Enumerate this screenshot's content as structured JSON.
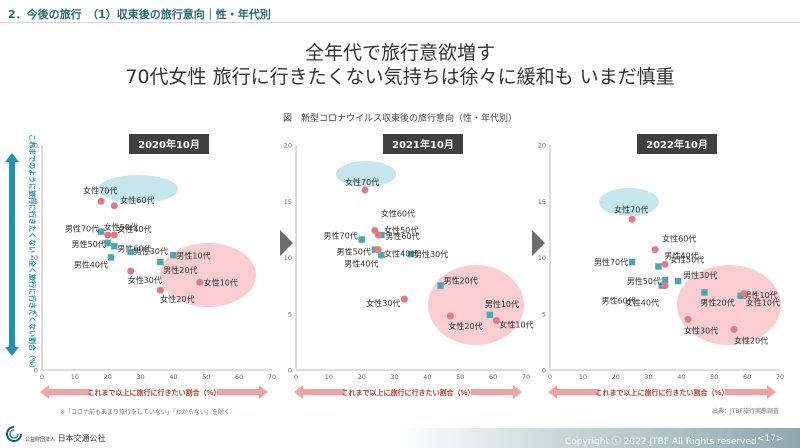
{
  "header": {
    "section": "2．今後の旅行　（1）収束後の旅行意向｜性・年代別"
  },
  "headline": {
    "line1": "全年代で旅行意欲増す",
    "line2": "70代女性 旅行に行きたくない気持ちは徐々に緩和も いまだ慎重"
  },
  "caption": "図　新型コロナウイルス収束後の旅行意向（性・年代別）",
  "footnote": "※「コロナ前もあまり旅行をしていない」「わからない」を除く",
  "source": "出典：JTBF旅行実態調査",
  "footer": {
    "copyright": "Copyright ⓒ 2022 JTBF All Rights reserved.",
    "page": "<17>",
    "org": "日本交通公社",
    "org_small": "公益財団法人"
  },
  "colors": {
    "male": "#4aa6b5",
    "female": "#e07b80",
    "arrow": "#f2a2a4",
    "vertical_arrow": "#1f93ad",
    "title_bg": "#404040"
  },
  "chart_data": [
    {
      "type": "scatter",
      "title": "2020年10月",
      "xlabel": "これまで以上に旅行に行きたい割合（%）",
      "ylabel": "これまでのように旅行に行きたくない・全く旅行に行きたくない割合（%）",
      "xlim": [
        0,
        70
      ],
      "ylim": [
        0,
        20
      ],
      "xticks": [
        0,
        10,
        20,
        30,
        40,
        50,
        60,
        70
      ],
      "yticks": [
        0,
        5,
        10,
        15,
        20
      ],
      "grid": false,
      "series": [
        {
          "name": "男性",
          "points": [
            {
              "label": "男性70代",
              "x": 18,
              "y": 12.3
            },
            {
              "label": "男性50代",
              "x": 20,
              "y": 11.3
            },
            {
              "label": "男性40代",
              "x": 21,
              "y": 10.0
            },
            {
              "label": "男性60代",
              "x": 22,
              "y": 11.0
            },
            {
              "label": "男性30代",
              "x": 27,
              "y": 10.5
            },
            {
              "label": "男性10代",
              "x": 40,
              "y": 10.2
            },
            {
              "label": "男性20代",
              "x": 36,
              "y": 9.6
            }
          ]
        },
        {
          "name": "女性",
          "points": [
            {
              "label": "女性70代",
              "x": 18,
              "y": 15.0
            },
            {
              "label": "女性60代",
              "x": 22,
              "y": 14.6
            },
            {
              "label": "女性50代",
              "x": 20,
              "y": 12.0
            },
            {
              "label": "女性40代",
              "x": 22,
              "y": 12.0
            },
            {
              "label": "女性30代",
              "x": 27,
              "y": 8.8
            },
            {
              "label": "女性20代",
              "x": 36,
              "y": 7.1
            },
            {
              "label": "女性10代",
              "x": 48,
              "y": 7.8
            }
          ]
        }
      ]
    },
    {
      "type": "scatter",
      "title": "2021年10月",
      "xlabel": "これまで以上に旅行に行きたい割合（%）",
      "xlim": [
        0,
        70
      ],
      "ylim": [
        0,
        20
      ],
      "xticks": [
        0,
        10,
        20,
        30,
        40,
        50,
        60,
        70
      ],
      "yticks": [
        0,
        5,
        10,
        15,
        20
      ],
      "grid": false,
      "series": [
        {
          "name": "男性",
          "points": [
            {
              "label": "男性70代",
              "x": 20,
              "y": 11.6
            },
            {
              "label": "男性60代",
              "x": 26,
              "y": 12.0
            },
            {
              "label": "男性50代",
              "x": 24,
              "y": 10.7
            },
            {
              "label": "男性40代",
              "x": 26,
              "y": 10.2
            },
            {
              "label": "男性30代",
              "x": 35,
              "y": 10.3
            },
            {
              "label": "男性20代",
              "x": 44,
              "y": 7.5
            },
            {
              "label": "男性10代",
              "x": 59,
              "y": 4.9
            }
          ]
        },
        {
          "name": "女性",
          "points": [
            {
              "label": "女性70代",
              "x": 21,
              "y": 16.0
            },
            {
              "label": "女性60代",
              "x": 24,
              "y": 12.4
            },
            {
              "label": "女性50代",
              "x": 25,
              "y": 12.0
            },
            {
              "label": "女性40代",
              "x": 25,
              "y": 10.7
            },
            {
              "label": "女性30代",
              "x": 33,
              "y": 6.3
            },
            {
              "label": "女性20代",
              "x": 47,
              "y": 4.8
            },
            {
              "label": "女性10代",
              "x": 61,
              "y": 4.4
            }
          ]
        }
      ]
    },
    {
      "type": "scatter",
      "title": "2022年10月",
      "xlabel": "これまで以上に旅行に行きたい割合（%）",
      "xlim": [
        0,
        70
      ],
      "ylim": [
        0,
        20
      ],
      "xticks": [
        0,
        10,
        20,
        30,
        40,
        50,
        60,
        70
      ],
      "yticks": [
        0,
        5,
        10,
        15,
        20
      ],
      "grid": false,
      "series": [
        {
          "name": "男性",
          "points": [
            {
              "label": "男性70代",
              "x": 25,
              "y": 9.6
            },
            {
              "label": "男性60代",
              "x": 34,
              "y": 7.5
            },
            {
              "label": "男性50代",
              "x": 35,
              "y": 8.0
            },
            {
              "label": "男性40代",
              "x": 33,
              "y": 9.2
            },
            {
              "label": "男性30代",
              "x": 39,
              "y": 7.9
            },
            {
              "label": "男性20代",
              "x": 47,
              "y": 6.9
            },
            {
              "label": "男性10代",
              "x": 58,
              "y": 6.6
            }
          ]
        },
        {
          "name": "女性",
          "points": [
            {
              "label": "女性70代",
              "x": 25,
              "y": 13.4
            },
            {
              "label": "女性60代",
              "x": 32,
              "y": 10.7
            },
            {
              "label": "女性50代",
              "x": 35,
              "y": 9.4
            },
            {
              "label": "女性40代",
              "x": 35,
              "y": 7.5
            },
            {
              "label": "女性30代",
              "x": 42,
              "y": 4.5
            },
            {
              "label": "女性20代",
              "x": 56,
              "y": 3.6
            },
            {
              "label": "女性10代",
              "x": 59,
              "y": 6.8
            }
          ]
        }
      ]
    }
  ]
}
